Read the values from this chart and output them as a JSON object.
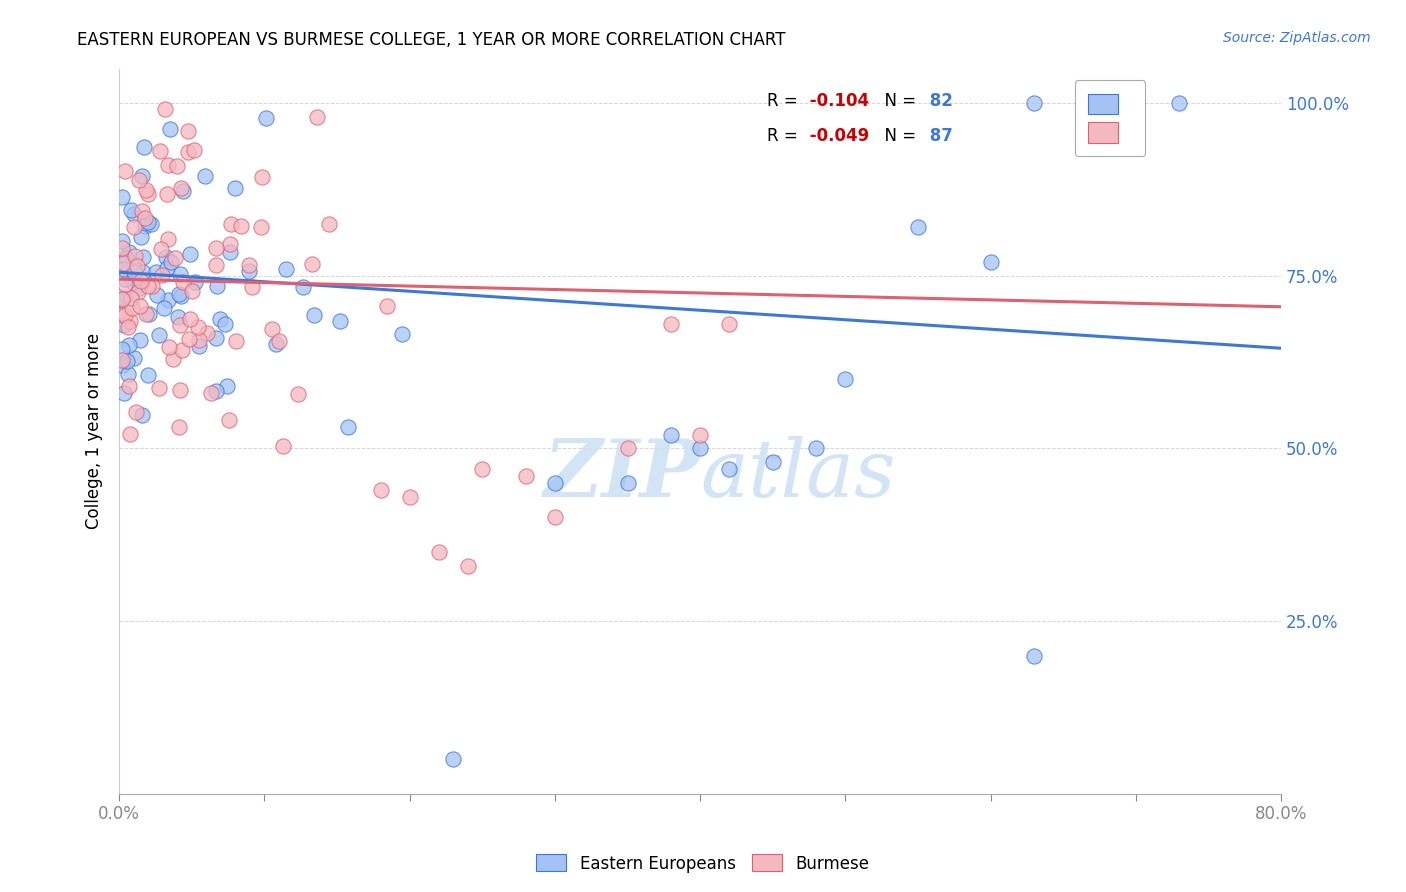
{
  "title": "EASTERN EUROPEAN VS BURMESE COLLEGE, 1 YEAR OR MORE CORRELATION CHART",
  "source": "Source: ZipAtlas.com",
  "ylabel": "College, 1 year or more",
  "legend_label_1": "Eastern Europeans",
  "legend_label_2": "Burmese",
  "R1": "-0.104",
  "N1": "82",
  "R2": "-0.049",
  "N2": "87",
  "color_blue": "#a4c2f4",
  "color_pink": "#f4b8c1",
  "color_blue_dark": "#3c78d8",
  "color_pink_dark": "#e06070",
  "color_red_r": "#cc0000",
  "watermark_color": "#cfe2f3",
  "xlim": [
    0.0,
    0.8
  ],
  "ylim": [
    0.0,
    1.05
  ],
  "xtick_positions": [
    0.0,
    0.1,
    0.2,
    0.3,
    0.4,
    0.5,
    0.6,
    0.7,
    0.8
  ],
  "xtick_labels": [
    "0.0%",
    "",
    "",
    "",
    "",
    "",
    "",
    "",
    "80.0%"
  ],
  "ytick_positions": [
    0.0,
    0.25,
    0.5,
    0.75,
    1.0
  ],
  "ytick_labels": [
    "",
    "25.0%",
    "50.0%",
    "75.0%",
    "100.0%"
  ],
  "blue_trend_x0": 0.0,
  "blue_trend_y0": 0.755,
  "blue_trend_x1": 0.8,
  "blue_trend_y1": 0.645,
  "pink_trend_x0": 0.0,
  "pink_trend_y0": 0.745,
  "pink_trend_x1": 0.8,
  "pink_trend_y1": 0.705
}
